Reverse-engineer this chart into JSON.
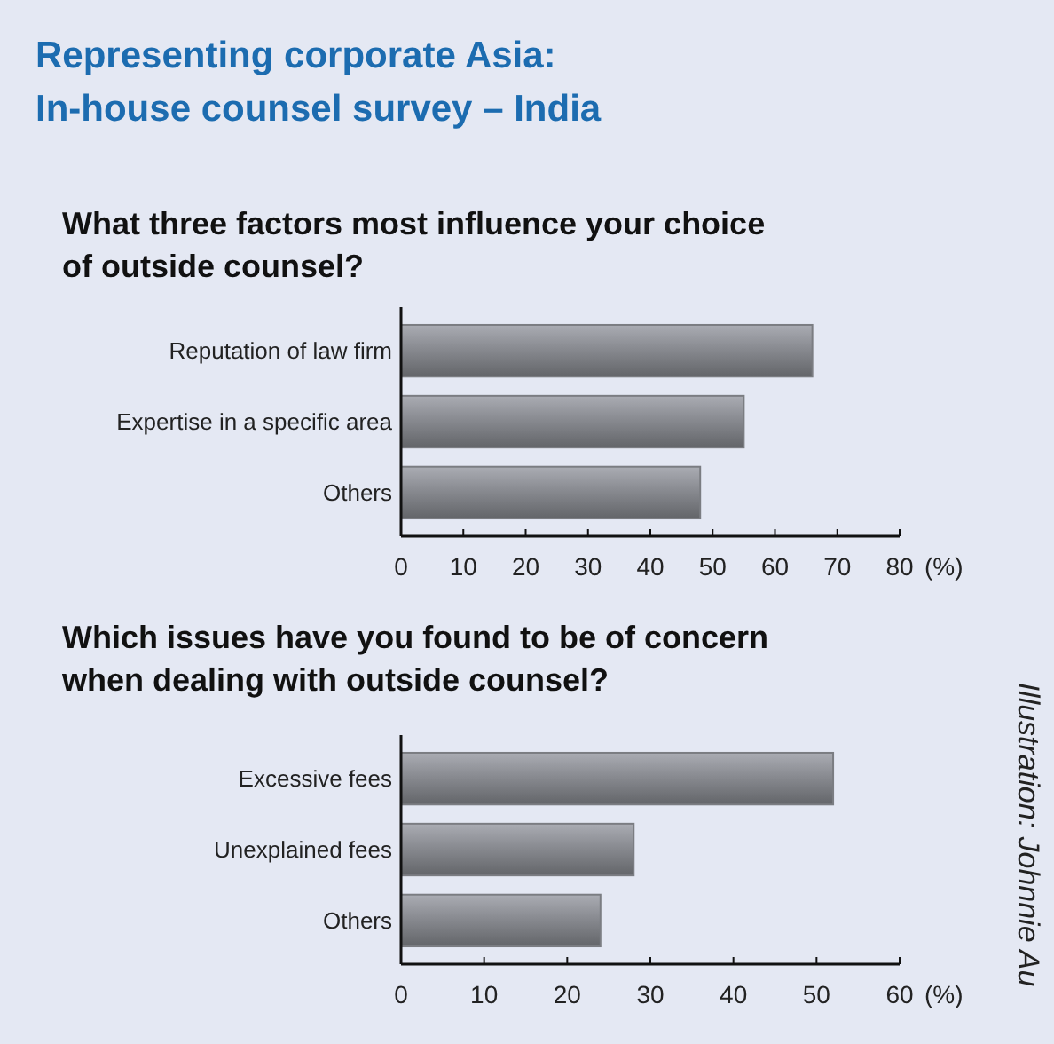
{
  "chart_data": [
    {
      "type": "bar",
      "orientation": "horizontal",
      "title": "Representing corporate Asia:\nIn-house counsel survey – India",
      "subtitle": "What three factors most influence your choice\nof outside counsel?",
      "categories": [
        "Reputation of law firm",
        "Expertise in a specific area",
        "Others"
      ],
      "values": [
        66,
        55,
        48
      ],
      "color": "#7b7d82",
      "xlim": [
        0,
        80
      ],
      "xticks": [
        0,
        10,
        20,
        30,
        40,
        50,
        60,
        70,
        80
      ],
      "xlabel": "(%)"
    },
    {
      "type": "bar",
      "orientation": "horizontal",
      "title": "Which issues have you found to be of concern\nwhen dealing with outside counsel?",
      "categories": [
        "Excessive fees",
        "Unexplained fees",
        "Others"
      ],
      "values": [
        52,
        28,
        24
      ],
      "color": "#7b7d82",
      "xlim": [
        0,
        60
      ],
      "xticks": [
        0,
        10,
        20,
        30,
        40,
        50,
        60
      ],
      "xlabel": "(%)",
      "annotations": [
        "Illustration: Johnnie Au"
      ]
    }
  ]
}
